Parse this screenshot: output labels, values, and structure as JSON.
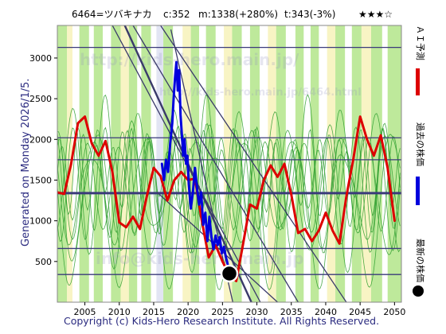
{
  "header": {
    "code_name": "6464=ツバキナカ",
    "current": "c:352",
    "mid": "m:1338(+280%)",
    "target": "t:343(-3%)",
    "stars": "★★★☆"
  },
  "side_label": "Generated on Monday 2026/1/5.",
  "footer": "Copyright (c) Kids-Hero Research Institute. All Rights Reserved.",
  "watermarks": [
    "http://kids-hero.main.jp/",
    "http://kids-hero.main.jp/6464.html",
    "info@kids-hero.main.jp"
  ],
  "legend": [
    {
      "label": "ＡＩ予測",
      "color": "#dd0000",
      "kind": "line"
    },
    {
      "label": "過去の株価",
      "color": "#0000dd",
      "kind": "line"
    },
    {
      "label": "最新の株価",
      "color": "#000000",
      "kind": "dot"
    }
  ],
  "colors": {
    "prediction": "#dd0000",
    "past": "#0000dd",
    "latest": "#000000",
    "band_green": "#a8e27a",
    "band_yellow": "#f5f0b0",
    "band_blue": "#d8dcef",
    "green_lines": "#2e9e2e",
    "hlines": "#3a3a7a"
  },
  "chart_data": {
    "type": "line",
    "x_ticks": [
      2005,
      2010,
      2015,
      2020,
      2025,
      2030,
      2035,
      2040,
      2045,
      2050
    ],
    "y_ticks": [
      500,
      1000,
      1500,
      2000,
      2500,
      3000
    ],
    "xlim": [
      2001,
      2051
    ],
    "ylim": [
      0,
      3400
    ],
    "grid": false,
    "horizontal_levels": [
      {
        "value": 3130,
        "weight": "thin"
      },
      {
        "value": 2020,
        "weight": "thin"
      },
      {
        "value": 1750,
        "weight": "thin"
      },
      {
        "value": 1340,
        "weight": "thick"
      },
      {
        "value": 660,
        "weight": "thin"
      },
      {
        "value": 340,
        "weight": "thin"
      }
    ],
    "trend_lines": [
      {
        "x1": 2009,
        "y1": 3400,
        "x2": 2030.5,
        "y2": 0
      },
      {
        "x1": 2010.8,
        "y1": 3400,
        "x2": 2029.2,
        "y2": 0
      },
      {
        "x1": 2012,
        "y1": 3400,
        "x2": 2036,
        "y2": 0
      },
      {
        "x1": 2016,
        "y1": 3400,
        "x2": 2043,
        "y2": 0
      },
      {
        "x1": 2015.5,
        "y1": 1350,
        "x2": 2033,
        "y2": 0
      },
      {
        "x1": 2017.5,
        "y1": 3350,
        "x2": 2026.5,
        "y2": 0
      }
    ],
    "series": [
      {
        "name": "ＡＩ予測",
        "color": "#dd0000",
        "points": [
          [
            2001,
            1350
          ],
          [
            2002,
            1330
          ],
          [
            2003,
            1700
          ],
          [
            2004,
            2200
          ],
          [
            2005,
            2280
          ],
          [
            2006,
            1950
          ],
          [
            2007,
            1800
          ],
          [
            2008,
            1980
          ],
          [
            2009,
            1600
          ],
          [
            2010,
            980
          ],
          [
            2011,
            920
          ],
          [
            2012,
            1050
          ],
          [
            2013,
            900
          ],
          [
            2014,
            1300
          ],
          [
            2015,
            1650
          ],
          [
            2016,
            1550
          ],
          [
            2017,
            1250
          ],
          [
            2018,
            1500
          ],
          [
            2019,
            1600
          ],
          [
            2020,
            1500
          ],
          [
            2021,
            1520
          ],
          [
            2022,
            1000
          ],
          [
            2023,
            550
          ],
          [
            2024,
            700
          ],
          [
            2025,
            500
          ],
          [
            2026,
            330
          ],
          [
            2027,
            260
          ],
          [
            2028,
            720
          ],
          [
            2029,
            1200
          ],
          [
            2030,
            1150
          ],
          [
            2031,
            1500
          ],
          [
            2032,
            1680
          ],
          [
            2033,
            1540
          ],
          [
            2034,
            1700
          ],
          [
            2035,
            1320
          ],
          [
            2036,
            850
          ],
          [
            2037,
            900
          ],
          [
            2038,
            750
          ],
          [
            2039,
            880
          ],
          [
            2040,
            1100
          ],
          [
            2041,
            880
          ],
          [
            2042,
            720
          ],
          [
            2043,
            1300
          ],
          [
            2044,
            1750
          ],
          [
            2045,
            2280
          ],
          [
            2046,
            2000
          ],
          [
            2047,
            1800
          ],
          [
            2048,
            2050
          ],
          [
            2049,
            1650
          ],
          [
            2050,
            1000
          ]
        ]
      },
      {
        "name": "過去の株価",
        "color": "#0000dd",
        "points": [
          [
            2016.2,
            1700
          ],
          [
            2016.5,
            1500
          ],
          [
            2016.8,
            1750
          ],
          [
            2017.1,
            1600
          ],
          [
            2017.4,
            1950
          ],
          [
            2017.7,
            2200
          ],
          [
            2017.9,
            2500
          ],
          [
            2018.1,
            2750
          ],
          [
            2018.3,
            2950
          ],
          [
            2018.5,
            2600
          ],
          [
            2018.7,
            2850
          ],
          [
            2018.9,
            2300
          ],
          [
            2019.1,
            2050
          ],
          [
            2019.3,
            1800
          ],
          [
            2019.5,
            2000
          ],
          [
            2019.7,
            1700
          ],
          [
            2019.9,
            1800
          ],
          [
            2020.1,
            1450
          ],
          [
            2020.4,
            1150
          ],
          [
            2020.7,
            1350
          ],
          [
            2021.0,
            1650
          ],
          [
            2021.3,
            1400
          ],
          [
            2021.6,
            1200
          ],
          [
            2021.9,
            1350
          ],
          [
            2022.2,
            950
          ],
          [
            2022.5,
            1100
          ],
          [
            2022.8,
            750
          ],
          [
            2023.1,
            1050
          ],
          [
            2023.4,
            800
          ],
          [
            2023.7,
            650
          ],
          [
            2024.0,
            820
          ],
          [
            2024.3,
            700
          ],
          [
            2024.6,
            800
          ],
          [
            2024.9,
            600
          ],
          [
            2025.2,
            680
          ],
          [
            2025.5,
            550
          ],
          [
            2025.8,
            450
          ],
          [
            2026.0,
            352
          ]
        ]
      }
    ],
    "latest_point": {
      "x": 2026.0,
      "y": 352
    }
  }
}
